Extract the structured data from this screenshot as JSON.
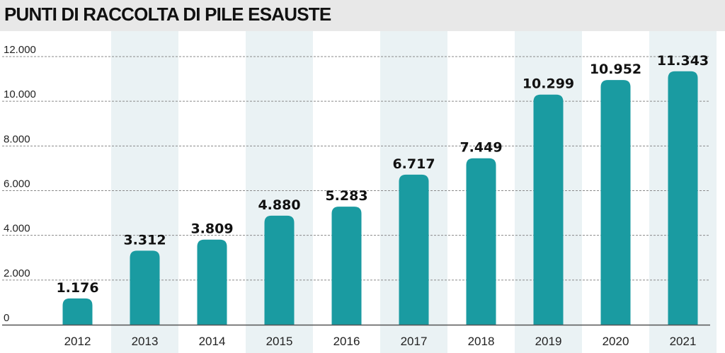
{
  "title": "PUNTI DI RACCOLTA DI PILE ESAUSTE",
  "colors": {
    "bar": "#1a9ba1",
    "band": "#eaf2f4",
    "grid": "#8a8a8a",
    "title_bg": "#e8e8e8"
  },
  "chart_data": {
    "type": "bar",
    "title": "PUNTI DI RACCOLTA DI PILE ESAUSTE",
    "xlabel": "",
    "ylabel": "",
    "categories": [
      "2012",
      "2013",
      "2014",
      "2015",
      "2016",
      "2017",
      "2018",
      "2019",
      "2020",
      "2021"
    ],
    "values": [
      1176,
      3312,
      3809,
      4880,
      5283,
      6717,
      7449,
      10299,
      10952,
      11343
    ],
    "value_labels": [
      "1.176",
      "3.312",
      "3.809",
      "4.880",
      "5.283",
      "6.717",
      "7.449",
      "10.299",
      "10.952",
      "11.343"
    ],
    "ylim": [
      0,
      12000
    ],
    "yticks": [
      0,
      2000,
      4000,
      6000,
      8000,
      10000,
      12000
    ],
    "ytick_labels": [
      "0",
      "2.000",
      "4.000",
      "6.000",
      "8.000",
      "10.000",
      "12.000"
    ],
    "grid": true,
    "legend": "none"
  }
}
